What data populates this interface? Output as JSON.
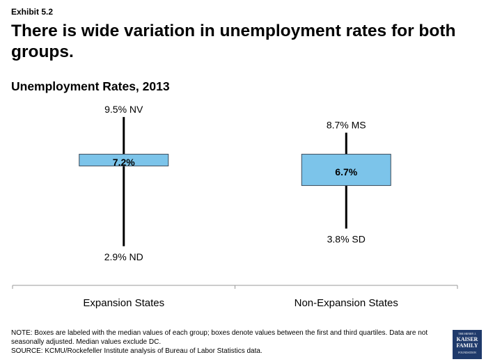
{
  "exhibit_label": "Exhibit 5.2",
  "headline": "There is wide variation in unemployment rates for both groups.",
  "chart_data": {
    "type": "box",
    "title": "Unemployment Rates, 2013",
    "ylim": [
      2.5,
      10.5
    ],
    "groups": [
      {
        "name": "Expansion States",
        "max": 9.5,
        "max_label": "9.5% NV",
        "q3": 7.6,
        "median": 7.2,
        "median_label": "7.2%",
        "q1": 7.0,
        "min": 2.9,
        "min_label": "2.9% ND"
      },
      {
        "name": "Non-Expansion States",
        "max": 8.7,
        "max_label": "8.7% MS",
        "q3": 7.6,
        "median": 6.7,
        "median_label": "6.7%",
        "q1": 6.0,
        "min": 3.8,
        "min_label": "3.8% SD"
      }
    ],
    "box_color": "#7cc4ea",
    "box_border_color": "#3a4a5a"
  },
  "note_lines": [
    "NOTE: Boxes are labeled with the median values of each group; boxes denote values between the first and third quartiles. Data are not seasonally adjusted. Median values exclude DC.",
    "SOURCE: KCMU/Rockefeller Institute analysis of Bureau of Labor Statistics data."
  ],
  "logo": {
    "line1": "THE HENRY J.",
    "line2": "KAISER",
    "line3": "FAMILY",
    "line4": "FOUNDATION",
    "color": "#1f3a6b"
  }
}
